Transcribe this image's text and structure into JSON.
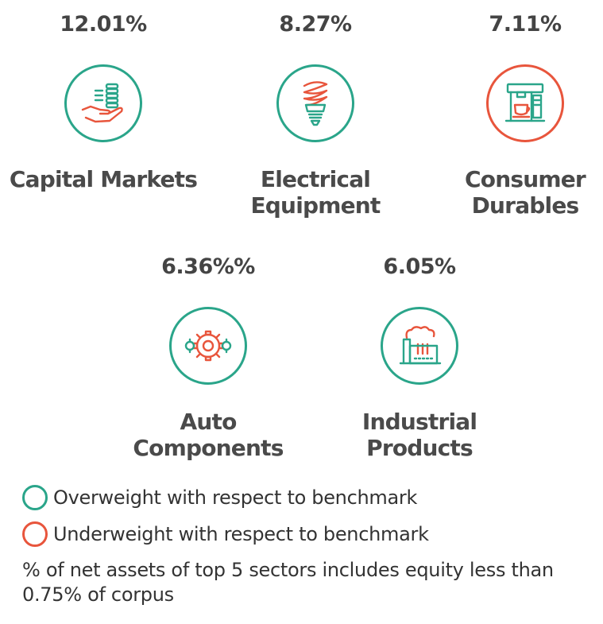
{
  "colors": {
    "overweight": "#2aa58a",
    "underweight": "#e8553c",
    "text": "#4a4a4a"
  },
  "sectors": [
    {
      "percent": "12.01%",
      "name_line1": "Capital Markets",
      "name_line2": "",
      "icon": "hand-coins-icon",
      "status": "overweight"
    },
    {
      "percent": "8.27%",
      "name_line1": "Electrical",
      "name_line2": "Equipment",
      "icon": "light-bulb-icon",
      "status": "overweight"
    },
    {
      "percent": "7.11%",
      "name_line1": "Consumer",
      "name_line2": "Durables",
      "icon": "coffee-machine-icon",
      "status": "underweight"
    },
    {
      "percent": "6.36%%",
      "name_line1": "Auto",
      "name_line2": "Components",
      "icon": "gears-icon",
      "status": "overweight"
    },
    {
      "percent": "6.05%",
      "name_line1": "Industrial",
      "name_line2": "Products",
      "icon": "factory-icon",
      "status": "overweight"
    }
  ],
  "legend": {
    "overweight_label": "Overweight with respect to benchmark",
    "underweight_label": "Underweight with respect to benchmark"
  },
  "note": {
    "line1": "% of net assets of top 5 sectors includes equity less than",
    "line2": "0.75% of corpus"
  }
}
